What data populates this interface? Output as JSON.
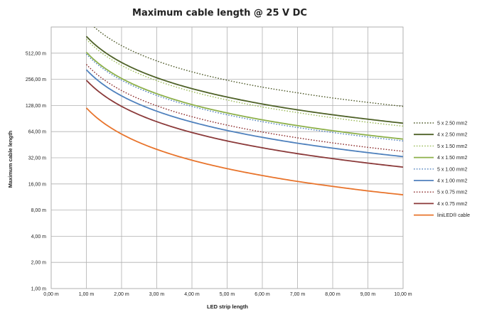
{
  "chart_data": {
    "type": "line",
    "title": "Maximum cable length @ 25 V DC",
    "xlabel": "LED strip length",
    "ylabel": "Maximum cable length",
    "xlim": [
      0,
      10
    ],
    "ylim": [
      1,
      1024
    ],
    "yscale": "log2",
    "grid": true,
    "legend": "right",
    "x_ticks": [
      "0,00 m",
      "1,00 m",
      "2,00 m",
      "3,00 m",
      "4,00 m",
      "5,00 m",
      "6,00 m",
      "7,00 m",
      "8,00 m",
      "9,00 m",
      "10,00 m"
    ],
    "y_ticks": [
      "1,00 m",
      "2,00 m",
      "4,00 m",
      "8,00 m",
      "16,00 m",
      "32,00 m",
      "64,00 m",
      "128,00 m",
      "256,00 m",
      "512,00 m"
    ],
    "x": [
      1,
      2,
      3,
      4,
      5,
      6,
      7,
      8,
      9,
      10
    ],
    "series": [
      {
        "name": "5 x 2.50 mm2",
        "color": "#4f5a2a",
        "dash": "dotted",
        "values": [
          1250,
          625,
          417,
          312,
          250,
          208,
          179,
          156,
          139,
          125
        ]
      },
      {
        "name": "4 x 2.50 mm2",
        "color": "#4f6228",
        "dash": "solid",
        "values": [
          800,
          400,
          267,
          200,
          160,
          133,
          114,
          100,
          89,
          80
        ]
      },
      {
        "name": "5 x 1.50 mm2",
        "color": "#9bbb59",
        "dash": "dotted",
        "values": [
          740,
          370,
          247,
          185,
          148,
          123,
          106,
          92.5,
          82,
          74
        ]
      },
      {
        "name": "4 x 1.50 mm2",
        "color": "#8db04a",
        "dash": "solid",
        "values": [
          525,
          262,
          175,
          131,
          105,
          87.5,
          75,
          65.6,
          58.3,
          52.5
        ]
      },
      {
        "name": "5 x 1.00 mm2",
        "color": "#4f81bd",
        "dash": "dotted",
        "values": [
          500,
          250,
          167,
          125,
          100,
          83.3,
          71.4,
          62.5,
          55.6,
          50
        ]
      },
      {
        "name": "4 x 1.00 mm2",
        "color": "#4f81bd",
        "dash": "solid",
        "values": [
          330,
          165,
          110,
          82.5,
          66,
          55,
          47.1,
          41.3,
          36.7,
          33
        ]
      },
      {
        "name": "5 x 0.75 mm2",
        "color": "#8b2a2a",
        "dash": "dotted",
        "values": [
          380,
          190,
          127,
          95,
          76,
          63.3,
          54.3,
          47.5,
          42.2,
          38
        ]
      },
      {
        "name": "4 x 0.75 mm2",
        "color": "#8b3a3a",
        "dash": "solid",
        "values": [
          250,
          125,
          83.3,
          62.5,
          50,
          41.7,
          35.7,
          31.3,
          27.8,
          25
        ]
      },
      {
        "name": "liniLED® cable",
        "color": "#e8742c",
        "dash": "solid",
        "values": [
          120,
          60,
          40,
          30,
          24,
          20,
          17.1,
          15,
          13.3,
          12
        ]
      }
    ]
  }
}
